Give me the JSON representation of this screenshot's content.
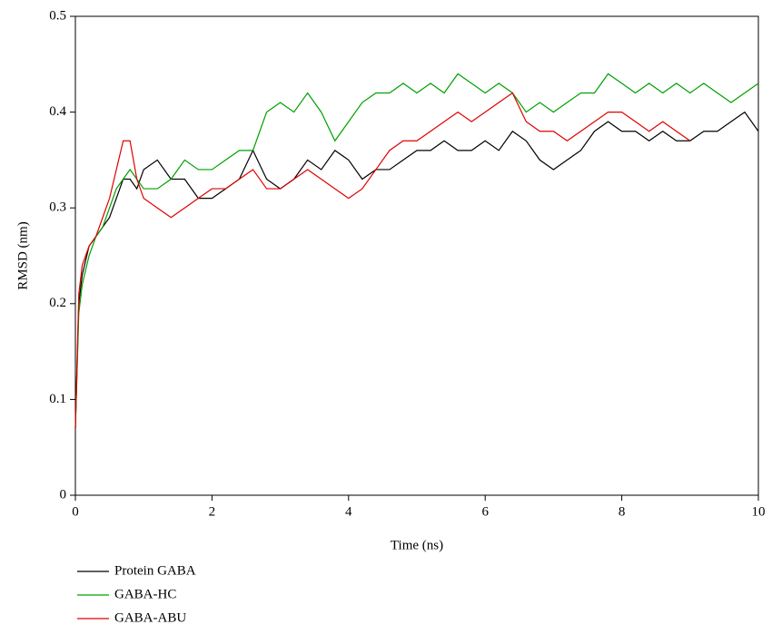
{
  "chart_data": {
    "type": "line",
    "x_label": "Time (ns)",
    "y_label": "RMSD (nm)",
    "x": [
      0,
      0.05,
      0.1,
      0.2,
      0.3,
      0.4,
      0.5,
      0.6,
      0.7,
      0.8,
      0.9,
      1,
      1.2,
      1.4,
      1.6,
      1.8,
      2,
      2.2,
      2.4,
      2.6,
      2.8,
      3,
      3.2,
      3.4,
      3.6,
      3.8,
      4,
      4.2,
      4.4,
      4.6,
      4.8,
      5,
      5.2,
      5.4,
      5.6,
      5.8,
      6,
      6.2,
      6.4,
      6.6,
      6.8,
      7,
      7.2,
      7.4,
      7.6,
      7.8,
      8,
      8.2,
      8.4,
      8.6,
      8.8,
      9,
      9.2,
      9.4,
      9.6,
      9.8,
      10
    ],
    "series": [
      {
        "name": "Protein GABA",
        "color": "#000000",
        "values": [
          0.07,
          0.2,
          0.23,
          0.26,
          0.27,
          0.28,
          0.29,
          0.31,
          0.33,
          0.33,
          0.32,
          0.34,
          0.35,
          0.33,
          0.33,
          0.31,
          0.31,
          0.32,
          0.33,
          0.36,
          0.33,
          0.32,
          0.33,
          0.35,
          0.34,
          0.36,
          0.35,
          0.33,
          0.34,
          0.34,
          0.35,
          0.36,
          0.36,
          0.37,
          0.36,
          0.36,
          0.37,
          0.36,
          0.38,
          0.37,
          0.35,
          0.34,
          0.35,
          0.36,
          0.38,
          0.39,
          0.38,
          0.38,
          0.37,
          0.38,
          0.37,
          0.37,
          0.38,
          0.38,
          0.39,
          0.4,
          0.38
        ]
      },
      {
        "name": "GABA-HC",
        "color": "#00a000",
        "values": [
          0.07,
          0.19,
          0.22,
          0.25,
          0.27,
          0.28,
          0.3,
          0.32,
          0.33,
          0.34,
          0.33,
          0.32,
          0.32,
          0.33,
          0.35,
          0.34,
          0.34,
          0.35,
          0.36,
          0.36,
          0.4,
          0.41,
          0.4,
          0.42,
          0.4,
          0.37,
          0.39,
          0.41,
          0.42,
          0.42,
          0.43,
          0.42,
          0.43,
          0.42,
          0.44,
          0.43,
          0.42,
          0.43,
          0.42,
          0.4,
          0.41,
          0.4,
          0.41,
          0.42,
          0.42,
          0.44,
          0.43,
          0.42,
          0.43,
          0.42,
          0.43,
          0.42,
          0.43,
          0.42,
          0.41,
          0.42,
          0.43
        ]
      },
      {
        "name": "GABA-ABU",
        "color": "#e00000",
        "values": [
          0.07,
          0.21,
          0.24,
          0.26,
          0.27,
          0.29,
          0.31,
          0.34,
          0.37,
          0.37,
          0.33,
          0.31,
          0.3,
          0.29,
          0.3,
          0.31,
          0.32,
          0.32,
          0.33,
          0.34,
          0.32,
          0.32,
          0.33,
          0.34,
          0.33,
          0.32,
          0.31,
          0.32,
          0.34,
          0.36,
          0.37,
          0.37,
          0.38,
          0.39,
          0.4,
          0.39,
          0.4,
          0.41,
          0.42,
          0.39,
          0.38,
          0.38,
          0.37,
          0.38,
          0.39,
          0.4,
          0.4,
          0.39,
          0.38,
          0.39,
          0.38,
          0.37,
          null,
          null,
          null,
          null,
          null
        ]
      }
    ],
    "xlim": [
      0,
      10
    ],
    "xticks": [
      0,
      2,
      4,
      6,
      8,
      10
    ],
    "ylim": [
      0,
      0.5
    ],
    "yticks": [
      0,
      0.1,
      0.2,
      0.3,
      0.4,
      0.5
    ]
  }
}
